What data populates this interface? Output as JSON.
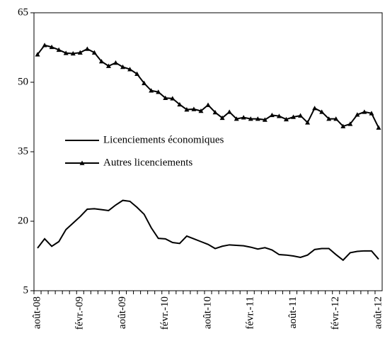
{
  "chart_data": {
    "type": "line",
    "categories": [
      "août-08",
      null,
      null,
      null,
      null,
      null,
      "févr.-09",
      null,
      null,
      null,
      null,
      null,
      "août-09",
      null,
      null,
      null,
      null,
      null,
      "févr.-10",
      null,
      null,
      null,
      null,
      null,
      "août-10",
      null,
      null,
      null,
      null,
      null,
      "févr.-11",
      null,
      null,
      null,
      null,
      null,
      "août-11",
      null,
      null,
      null,
      null,
      null,
      "févr.-12",
      null,
      null,
      null,
      null,
      null,
      "août-12"
    ],
    "series": [
      {
        "name": "Licenciements économiques",
        "color": "#000000",
        "marker": "none",
        "values": [
          14.2,
          16.2,
          14.6,
          15.6,
          18.2,
          19.6,
          21,
          22.6,
          22.7,
          22.5,
          22.3,
          23.5,
          24.5,
          24.3,
          23,
          21.5,
          18.6,
          16.3,
          16.2,
          15.4,
          15.2,
          16.8,
          16.2,
          15.6,
          15,
          14.1,
          14.6,
          14.9,
          14.8,
          14.7,
          14.4,
          14,
          14.3,
          13.8,
          12.8,
          12.7,
          12.5,
          12.2,
          12.7,
          13.9,
          14.1,
          14.1,
          12.8,
          11.6,
          13.2,
          13.5,
          13.6,
          13.6,
          11.8
        ]
      },
      {
        "name": "Autres licenciements",
        "color": "#000000",
        "marker": "triangle",
        "values": [
          56,
          58,
          57.6,
          57,
          56.3,
          56.2,
          56.4,
          57.2,
          56.4,
          54.5,
          53.5,
          54.2,
          53.3,
          52.8,
          51.8,
          49.8,
          48.2,
          47.9,
          46.6,
          46.5,
          45.2,
          44.1,
          44.2,
          43.8,
          45.1,
          43.5,
          42.3,
          43.6,
          42.1,
          42.4,
          42.1,
          42.1,
          41.9,
          42.9,
          42.7,
          42,
          42.5,
          42.8,
          41.3,
          44.4,
          43.6,
          42.1,
          42.1,
          40.5,
          41,
          43,
          43.6,
          43.3,
          40.2
        ]
      }
    ],
    "ylim": [
      5,
      65
    ],
    "yticks": [
      5,
      20,
      35,
      50,
      65
    ],
    "grid": false
  }
}
